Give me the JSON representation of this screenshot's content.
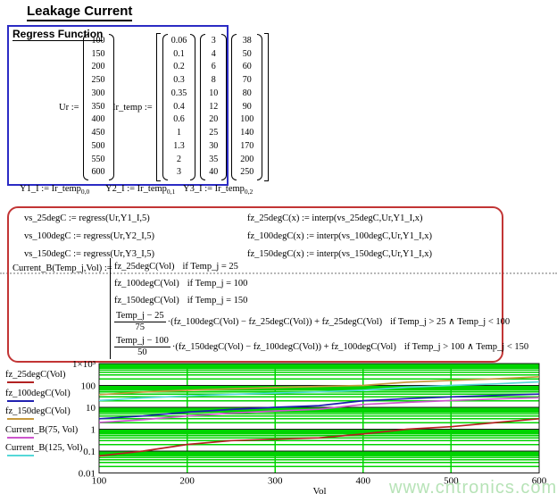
{
  "page": {
    "title": "Leakage Current",
    "watermark": "www.cntronics.com"
  },
  "colors": {
    "regress_box_border": "#2b2bc4",
    "formula_box_border": "#c23535",
    "grid_green": "#00d400",
    "axis_dark": "#1a1a1a",
    "watermark_green": "#b7e3b7"
  },
  "regress_box": {
    "heading": "Regress Function",
    "ur": {
      "label": "Ur :=",
      "values": [
        100,
        150,
        200,
        250,
        300,
        350,
        400,
        450,
        500,
        550,
        600
      ]
    },
    "ir_temp": {
      "label": "Ir_temp :=",
      "columns": [
        [
          0.06,
          0.1,
          0.2,
          0.3,
          0.35,
          0.4,
          0.6,
          1,
          1.3,
          2,
          3
        ],
        [
          3,
          4,
          6,
          8,
          10,
          12,
          20,
          25,
          30,
          35,
          40
        ],
        [
          38,
          50,
          60,
          70,
          80,
          90,
          100,
          140,
          170,
          200,
          250
        ]
      ]
    },
    "assignments": [
      {
        "text": "Y1_I := Ir_temp",
        "sub": "0,0"
      },
      {
        "text": "Y2_I := Ir_temp",
        "sub": "0,1"
      },
      {
        "text": "Y3_I := Ir_temp",
        "sub": "0,2"
      }
    ]
  },
  "formula_box": {
    "vs_lines": [
      "vs_25degC := regress(Ur,Y1_I,5)",
      "vs_100degC := regress(Ur,Y2_I,5)",
      "vs_150degC := regress(Ur,Y3_I,5)"
    ],
    "fz_lines": [
      "fz_25degC(x) := interp(vs_25degC,Ur,Y1_I,x)",
      "fz_100degC(x) := interp(vs_100degC,Ur,Y1_I,x)",
      "fz_150degC(x) := interp(vs_150degC,Ur,Y1_I,x)"
    ],
    "current_b": {
      "lhs": "Current_B(Temp_j,Vol) :=",
      "branches": [
        {
          "expr": "fz_25degC(Vol)",
          "cond": "if  Temp_j = 25"
        },
        {
          "expr": "fz_100degC(Vol)",
          "cond": "if  Temp_j = 100"
        },
        {
          "expr": "fz_150degC(Vol)",
          "cond": "if  Temp_j = 150"
        },
        {
          "num": "Temp_j − 25",
          "den": "75",
          "expr": "·(fz_100degC(Vol) − fz_25degC(Vol)) + fz_25degC(Vol)",
          "cond": "if  Temp_j > 25 ∧ Temp_j < 100"
        },
        {
          "num": "Temp_j − 100",
          "den": "50",
          "expr": "·(fz_150degC(Vol) − fz_100degC(Vol)) + fz_100degC(Vol)",
          "cond": "if  Temp_j > 100 ∧ Temp_j < 150"
        }
      ]
    }
  },
  "chart_data": {
    "type": "line",
    "title": "",
    "xlabel": "Vol",
    "ylabel": "",
    "xlim": [
      100,
      600
    ],
    "ylim": [
      0.01,
      1000
    ],
    "ylog": true,
    "grid": true,
    "legend_position": "left",
    "x": [
      100,
      150,
      200,
      250,
      300,
      350,
      400,
      450,
      500,
      550,
      600
    ],
    "x_ticks": [
      100,
      200,
      300,
      400,
      500,
      600
    ],
    "y_ticks": [
      {
        "label": "1×10³",
        "value": 1000
      },
      {
        "label": "100",
        "value": 100
      },
      {
        "label": "10",
        "value": 10
      },
      {
        "label": "1",
        "value": 1
      },
      {
        "label": "0.1",
        "value": 0.1
      },
      {
        "label": "0.01",
        "value": 0.01
      }
    ],
    "series": [
      {
        "name": "fz_25degC(Vol)",
        "color": "#b22222",
        "values": [
          0.06,
          0.1,
          0.2,
          0.3,
          0.35,
          0.4,
          0.6,
          1,
          1.3,
          2,
          3
        ]
      },
      {
        "name": "fz_100degC(Vol)",
        "color": "#2020b0",
        "values": [
          3,
          4,
          6,
          8,
          10,
          12,
          20,
          25,
          30,
          35,
          40
        ]
      },
      {
        "name": "fz_150degC(Vol)",
        "color": "#c79a3e",
        "values": [
          38,
          50,
          60,
          70,
          80,
          90,
          100,
          140,
          170,
          200,
          250
        ]
      },
      {
        "name": "Current_B(75, Vol)",
        "color": "#cc55cc",
        "values": [
          2.02,
          2.7,
          4.07,
          5.43,
          6.78,
          8.13,
          13.53,
          17.0,
          20.43,
          24.0,
          27.67
        ]
      },
      {
        "name": "Current_B(125, Vol)",
        "color": "#55d8d8",
        "values": [
          20.5,
          27,
          33,
          39,
          45,
          51,
          60,
          82.5,
          100,
          117.5,
          145
        ]
      }
    ]
  }
}
